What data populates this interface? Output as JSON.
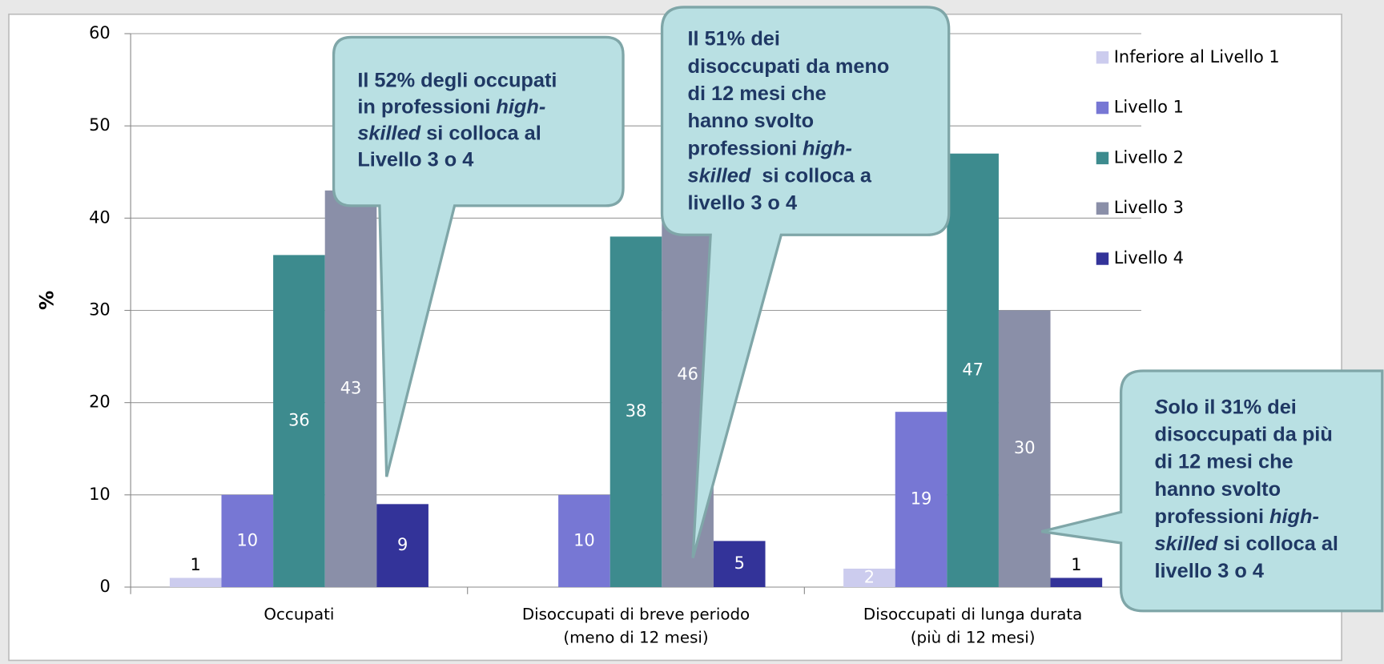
{
  "chart_data": {
    "type": "bar",
    "y_label": "%",
    "categories": [
      [
        "Occupati"
      ],
      [
        "Disoccupati di breve periodo",
        "(meno di 12 mesi)"
      ],
      [
        "Disoccupati di lunga durata",
        "(più di 12 mesi)"
      ]
    ],
    "series": [
      {
        "name": "Inferiore al Livello 1",
        "color": "#ccccee",
        "values": [
          1,
          null,
          2
        ]
      },
      {
        "name": "Livello 1",
        "color": "#7777d4",
        "values": [
          10,
          10,
          19
        ]
      },
      {
        "name": "Livello 2",
        "color": "#3d8b8e",
        "values": [
          36,
          38,
          47
        ]
      },
      {
        "name": "Livello 3",
        "color": "#8a8fa8",
        "values": [
          43,
          46,
          30
        ]
      },
      {
        "name": "Livello 4",
        "color": "#333399",
        "values": [
          9,
          5,
          1
        ]
      }
    ],
    "ylim": [
      0,
      60
    ],
    "yticks": [
      0,
      10,
      20,
      30,
      40,
      50,
      60
    ],
    "grid": true,
    "legend": "right",
    "annotations": [
      [
        [
          {
            "text": "Il 52% degli occupati",
            "italic": false
          }
        ],
        [
          {
            "text": "in professioni ",
            "italic": false
          },
          {
            "text": "high-",
            "italic": true
          }
        ],
        [
          {
            "text": "skilled",
            "italic": true
          },
          {
            "text": " si colloca al",
            "italic": false
          }
        ],
        [
          {
            "text": "Livello 3 o 4",
            "italic": false
          }
        ]
      ],
      [
        [
          {
            "text": "Il 51% dei",
            "italic": false
          }
        ],
        [
          {
            "text": "disoccupati da meno",
            "italic": false
          }
        ],
        [
          {
            "text": "di 12 mesi che",
            "italic": false
          }
        ],
        [
          {
            "text": "hanno svolto",
            "italic": false
          }
        ],
        [
          {
            "text": "professioni ",
            "italic": false
          },
          {
            "text": "high-",
            "italic": true
          }
        ],
        [
          {
            "text": "skilled",
            "italic": true
          },
          {
            "text": "  si colloca a",
            "italic": false
          }
        ],
        [
          {
            "text": "livello 3 o 4",
            "italic": false
          }
        ]
      ],
      [
        [
          {
            "text": "S",
            "italic": true
          },
          {
            "text": "olo il 31% dei",
            "italic": false
          }
        ],
        [
          {
            "text": "disoccupati da più",
            "italic": false
          }
        ],
        [
          {
            "text": "di 12 mesi che",
            "italic": false
          }
        ],
        [
          {
            "text": "hanno svolto",
            "italic": false
          }
        ],
        [
          {
            "text": "professioni ",
            "italic": false
          },
          {
            "text": "high-",
            "italic": true
          }
        ],
        [
          {
            "text": "skilled",
            "italic": true
          },
          {
            "text": " si colloca al",
            "italic": false
          }
        ],
        [
          {
            "text": "livello 3 o 4",
            "italic": false
          }
        ]
      ]
    ]
  }
}
